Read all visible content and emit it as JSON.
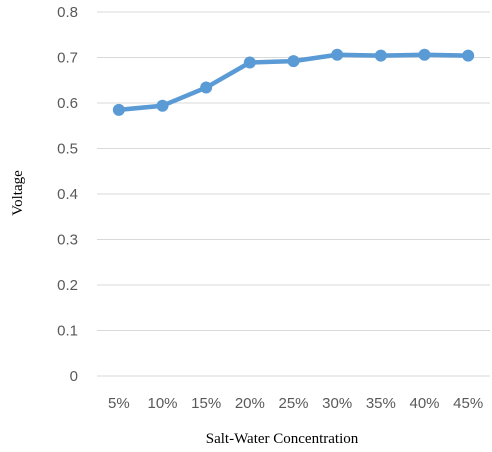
{
  "chart_data": {
    "type": "line",
    "title": "",
    "xlabel": "Salt-Water Concentration",
    "ylabel": "Voltage",
    "categories": [
      "5%",
      "10%",
      "15%",
      "20%",
      "25%",
      "30%",
      "35%",
      "40%",
      "45%"
    ],
    "series": [
      {
        "values": [
          0.585,
          0.594,
          0.634,
          0.689,
          0.692,
          0.706,
          0.704,
          0.706,
          0.704
        ],
        "color": "#5b9bd5"
      }
    ],
    "ylim": [
      0,
      0.8
    ],
    "yticks": [
      "0",
      "0.1",
      "0.2",
      "0.3",
      "0.4",
      "0.5",
      "0.6",
      "0.7",
      "0.8"
    ],
    "grid": true,
    "legend": "none"
  }
}
